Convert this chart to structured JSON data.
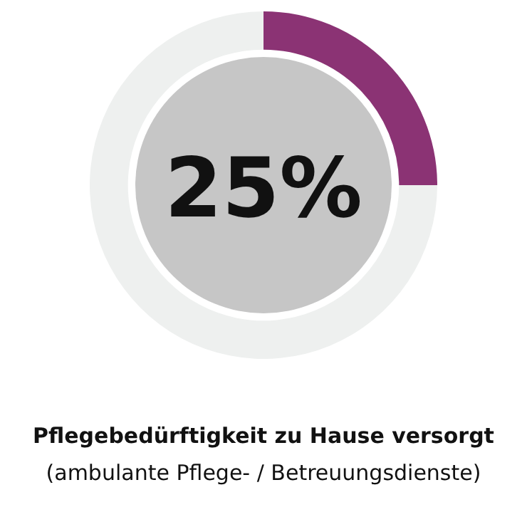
{
  "chart_data": {
    "type": "donut",
    "title": "Pflegebedürftigkeit zu Hause versorgt",
    "subtitle": "(ambulante Pflege- / Betreuungsdienste)",
    "categories": [
      null,
      null
    ],
    "values": [
      25,
      75
    ],
    "colors": [
      "#8b3374",
      "#eef0ef"
    ],
    "annotations": [
      "25%"
    ],
    "legend": false
  }
}
